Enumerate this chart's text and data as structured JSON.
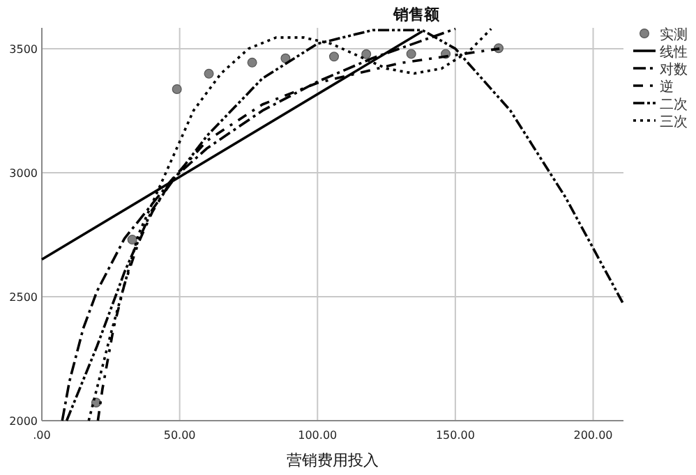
{
  "chart_data": {
    "type": "line",
    "title": "销售额",
    "xlabel": "营销费用投入",
    "xlim": [
      0,
      211
    ],
    "ylim": [
      2000,
      3584
    ],
    "xticks": [
      {
        "value": 0,
        "label": ".00"
      },
      {
        "value": 50,
        "label": "50.00"
      },
      {
        "value": 100,
        "label": "100.00"
      },
      {
        "value": 150,
        "label": "150.00"
      },
      {
        "value": 200,
        "label": "200.00"
      }
    ],
    "yticks": [
      2000,
      2500,
      3000,
      3500
    ],
    "grid": true,
    "legend": "top right",
    "series": [
      {
        "name": "实测",
        "type": "scatter",
        "marker": "circle",
        "color": "#808080",
        "x": [
          19.7,
          32.8,
          49,
          60.6,
          76.3,
          88.4,
          106,
          117.7,
          134,
          146.5,
          165.7
        ],
        "values": [
          2073,
          2730,
          3337,
          3399,
          3444,
          3461,
          3468,
          3478,
          3479,
          3479,
          3502
        ]
      },
      {
        "name": "线性",
        "type": "line",
        "line_style": "solid",
        "color": "#000000",
        "x": [
          0,
          138
        ],
        "values": [
          2650,
          3570
        ]
      },
      {
        "name": "对数",
        "type": "line",
        "line_style": "dashed",
        "color": "#000000",
        "x": [
          7.4,
          10,
          15,
          20,
          30,
          47,
          60,
          80,
          100,
          120,
          150
        ],
        "values": [
          2000,
          2158,
          2371,
          2522,
          2735,
          2970,
          3099,
          3250,
          3367,
          3462,
          3580
        ]
      },
      {
        "name": "逆",
        "type": "line",
        "line_style": "dashdot",
        "color": "#000000",
        "x": [
          20.33,
          22,
          26,
          30,
          35,
          40,
          47,
          60,
          80,
          100,
          130,
          166
        ],
        "values": [
          2000,
          2129,
          2372,
          2551,
          2716,
          2840,
          2970,
          3130,
          3275,
          3362,
          3442,
          3500
        ]
      },
      {
        "name": "二次",
        "type": "line",
        "line_style": "dashdotdot",
        "color": "#000000",
        "x": [
          9,
          20,
          30,
          40,
          47,
          60,
          80,
          100,
          120,
          138,
          150,
          170,
          190,
          211
        ],
        "values": [
          2000,
          2300,
          2600,
          2850,
          2960,
          3150,
          3380,
          3520,
          3575,
          3575,
          3500,
          3250,
          2900,
          2470
        ]
      },
      {
        "name": "三次",
        "type": "line",
        "line_style": "dotted",
        "color": "#000000",
        "x": [
          17,
          25,
          35,
          47,
          55,
          65,
          75,
          85,
          95,
          105,
          115,
          125,
          135,
          145,
          155,
          163
        ],
        "values": [
          2000,
          2350,
          2750,
          3050,
          3250,
          3400,
          3500,
          3545,
          3545,
          3520,
          3470,
          3420,
          3400,
          3420,
          3490,
          3580
        ]
      }
    ]
  }
}
